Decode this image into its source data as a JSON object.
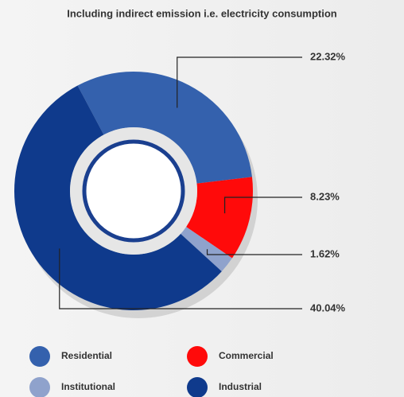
{
  "chart_data": {
    "type": "donut",
    "title": "Including indirect emission i.e. electricity consumption",
    "categories": [
      "Residential",
      "Commercial",
      "Institutional",
      "Industrial"
    ],
    "values": [
      22.32,
      8.23,
      1.62,
      40.04
    ],
    "value_labels": [
      "22.32%",
      "8.23%",
      "1.62%",
      "40.04%"
    ],
    "colors": [
      "#3461ad",
      "#ff0a0a",
      "#8fa2cc",
      "#0f3a8c"
    ],
    "legend": "bottom"
  }
}
